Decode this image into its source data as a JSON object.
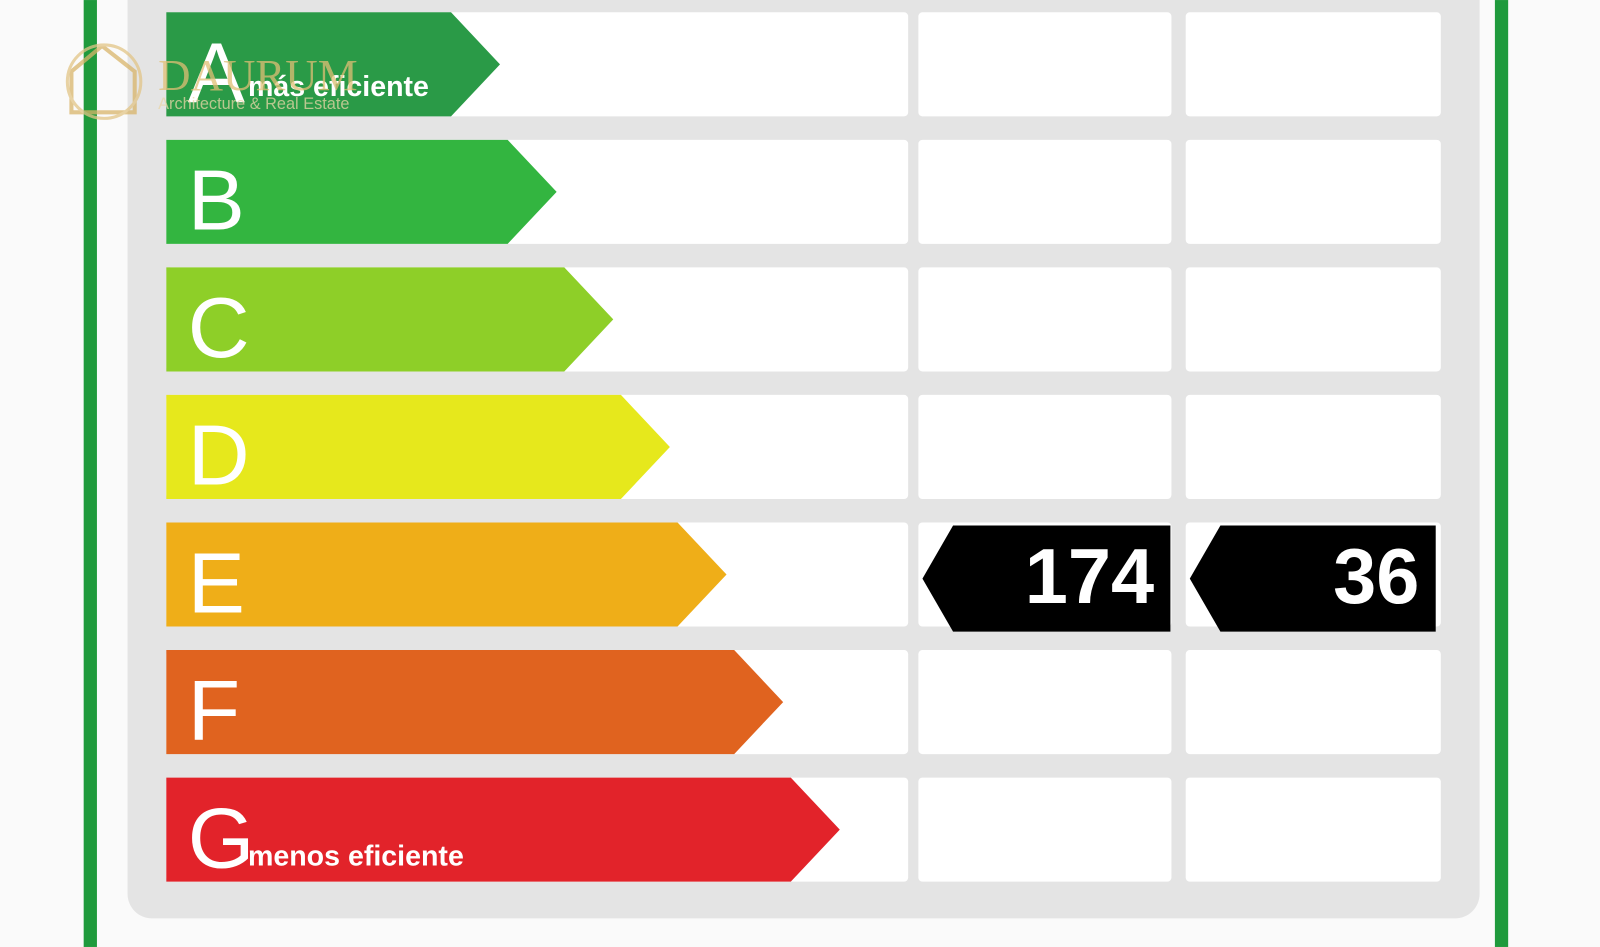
{
  "logo": {
    "name": "DAURUM",
    "tagline": "Architecture & Real Estate"
  },
  "rows": [
    {
      "letter": "A",
      "note": "más eficiente",
      "color": "#2a9a47"
    },
    {
      "letter": "B",
      "color": "#33b540"
    },
    {
      "letter": "C",
      "color": "#8ecf28"
    },
    {
      "letter": "D",
      "color": "#e6e81c"
    },
    {
      "letter": "E",
      "color": "#efae18"
    },
    {
      "letter": "F",
      "color": "#e0631f"
    },
    {
      "letter": "G",
      "note": "menos eficiente",
      "color": "#e2232a"
    }
  ],
  "indicators": [
    {
      "value": 174
    },
    {
      "value": 36
    }
  ]
}
